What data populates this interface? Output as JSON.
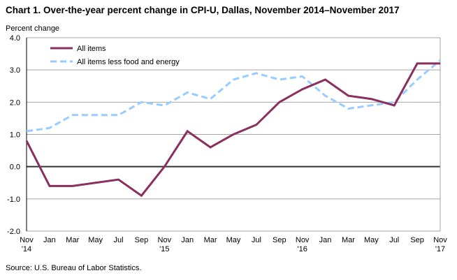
{
  "chart_data": {
    "type": "line",
    "title": "Chart 1. Over-the-year percent change in CPI-U, Dallas, November 2014–November 2017",
    "ylabel": "Percent change",
    "xlabel": "",
    "ylim": [
      -2.0,
      4.0
    ],
    "yticks": [
      "4.0",
      "3.0",
      "2.0",
      "1.0",
      "0.0",
      "-1.0",
      "-2.0"
    ],
    "ytick_values": [
      4,
      3,
      2,
      1,
      0,
      -1,
      -2
    ],
    "grid": true,
    "legend_placement": "top-left",
    "x": [
      [
        "Nov",
        "'14"
      ],
      [
        "Jan",
        ""
      ],
      [
        "Mar",
        ""
      ],
      [
        "May",
        ""
      ],
      [
        "Jul",
        ""
      ],
      [
        "Sep",
        ""
      ],
      [
        "Nov",
        "'15"
      ],
      [
        "Jan",
        ""
      ],
      [
        "Mar",
        ""
      ],
      [
        "May",
        ""
      ],
      [
        "Jul",
        ""
      ],
      [
        "Sep",
        ""
      ],
      [
        "Nov",
        "'16"
      ],
      [
        "Jan",
        ""
      ],
      [
        "Mar",
        ""
      ],
      [
        "May",
        ""
      ],
      [
        "Jul",
        ""
      ],
      [
        "Sep",
        ""
      ],
      [
        "Nov",
        "'17"
      ]
    ],
    "series": [
      {
        "name": "All items",
        "color": "#8B2F5E",
        "dash": false,
        "values": [
          0.8,
          -0.6,
          -0.6,
          -0.5,
          -0.4,
          -0.9,
          0.0,
          1.1,
          0.6,
          1.0,
          1.3,
          2.0,
          2.4,
          2.7,
          2.2,
          2.1,
          1.9,
          3.2,
          3.2
        ]
      },
      {
        "name": "All items less food and energy",
        "color": "#99CCFF",
        "dash": true,
        "values": [
          1.1,
          1.2,
          1.6,
          1.6,
          1.6,
          2.0,
          1.9,
          2.3,
          2.1,
          2.7,
          2.9,
          2.7,
          2.8,
          2.2,
          1.8,
          1.9,
          2.0,
          2.7,
          3.3
        ]
      }
    ]
  },
  "source": "Source: U.S. Bureau of Labor Statistics."
}
